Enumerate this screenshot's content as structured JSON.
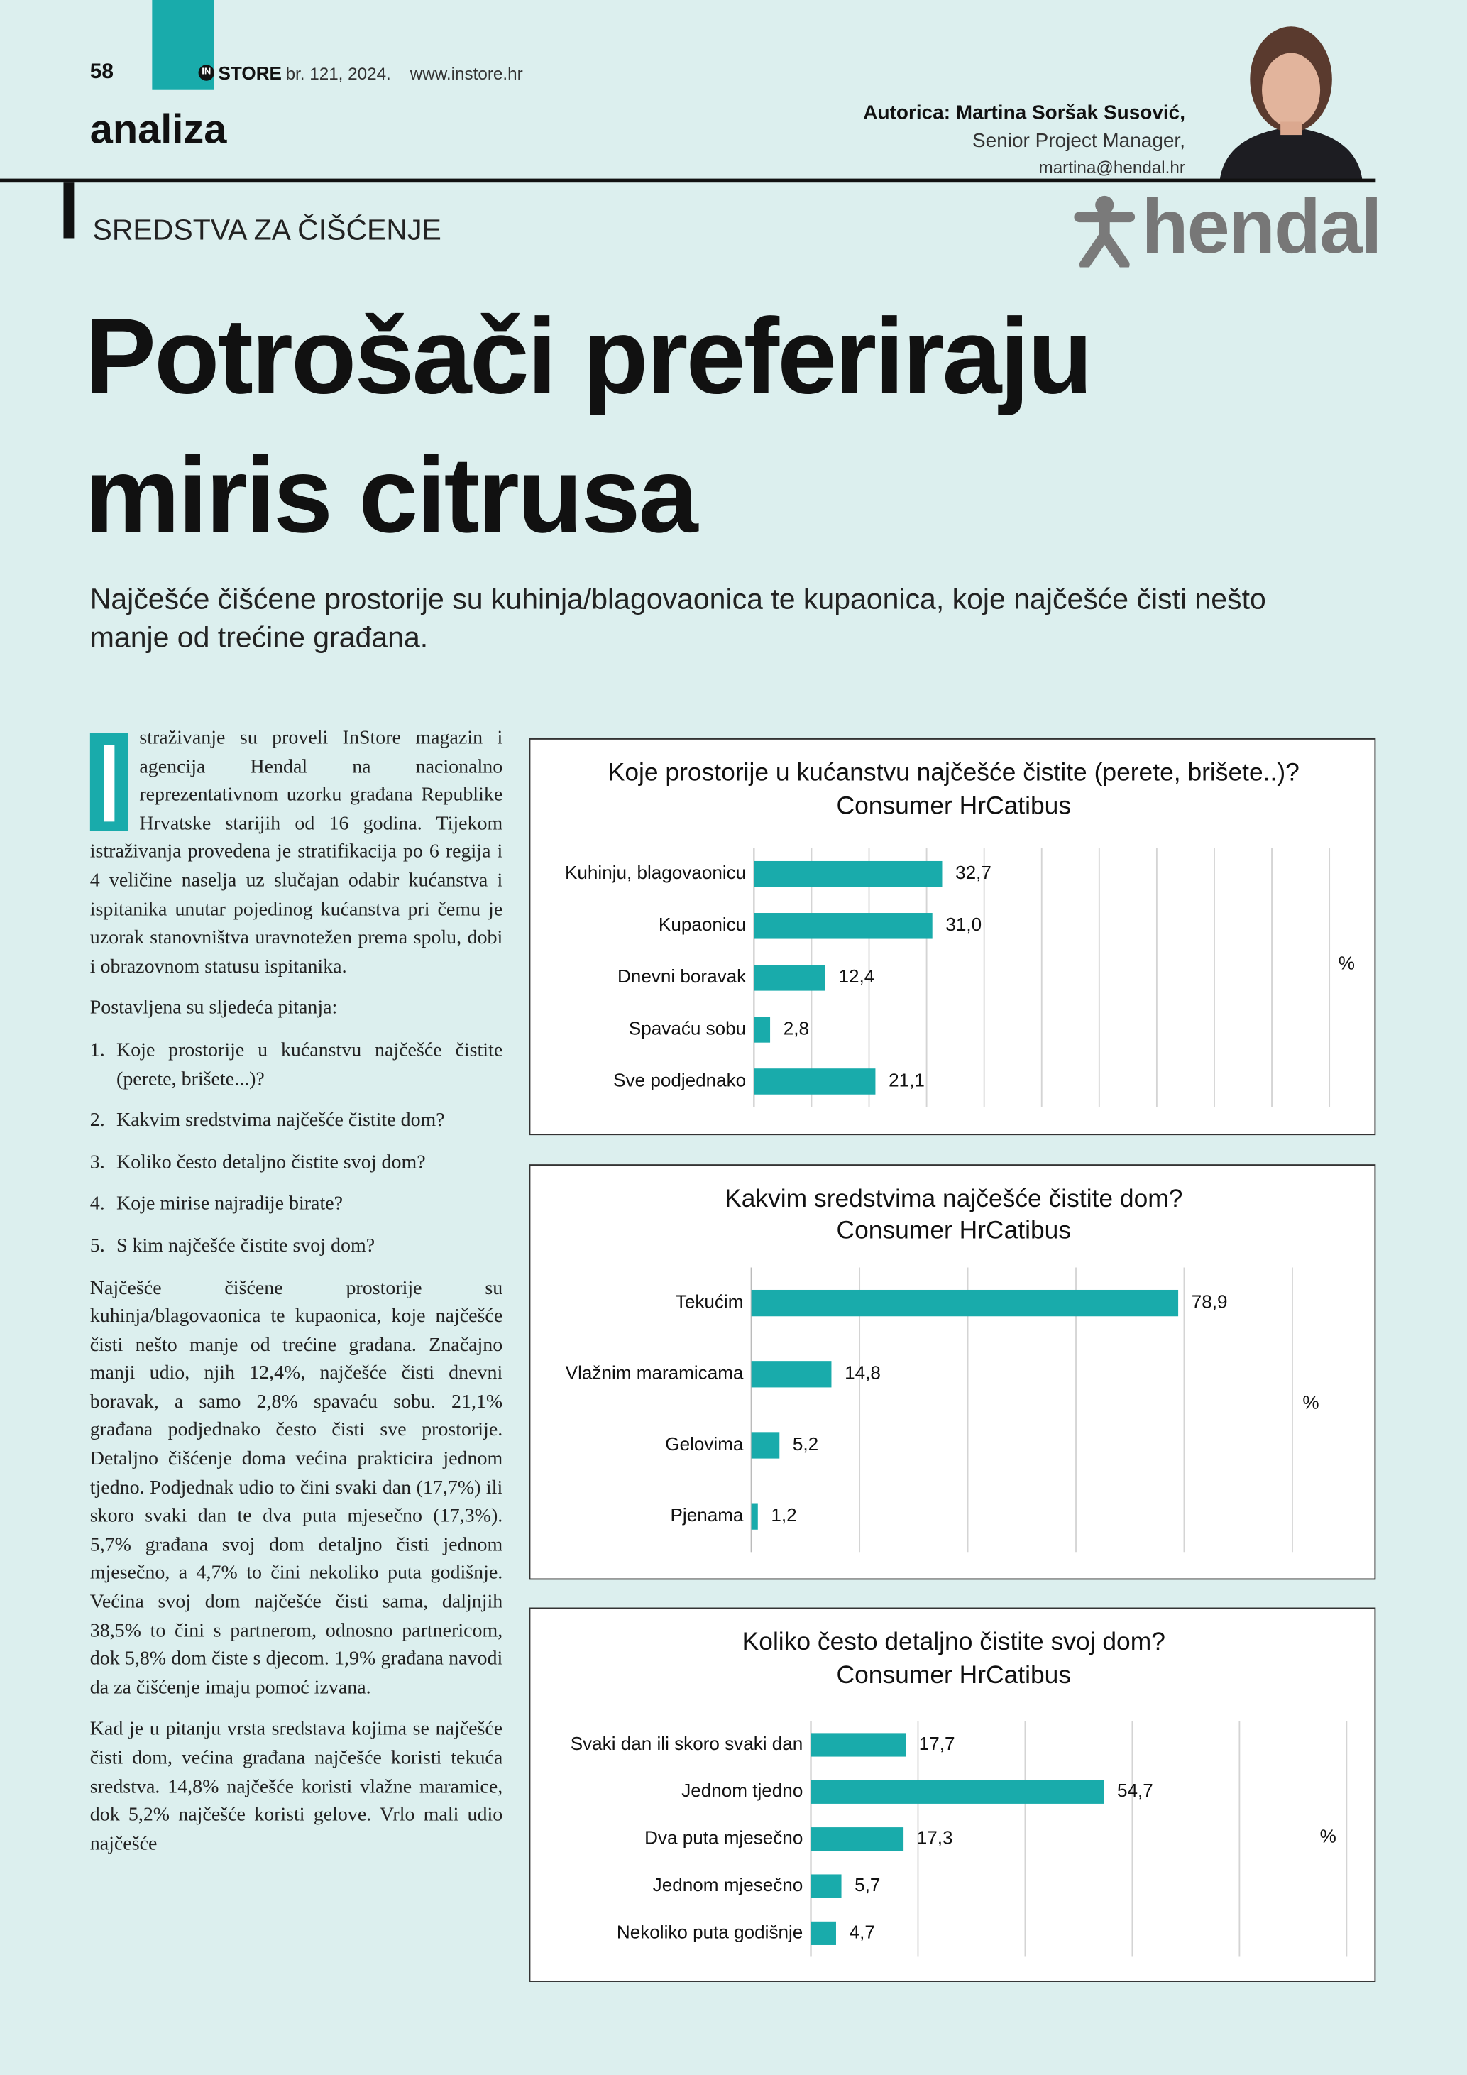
{
  "header": {
    "page_number": "58",
    "logo_badge": "IN",
    "logo_text": "STORE",
    "issue": "br. 121, 2024.",
    "website": "www.instore.hr",
    "section": "analiza",
    "author": "Autorica: Martina Soršak Susović,",
    "author_role": "Senior Project Manager,",
    "author_email": "martina@hendal.hr",
    "brand": "hendal"
  },
  "kicker": "SREDSTVA ZA ČIŠĆENJE",
  "title_lines": [
    "Potrošači preferiraju",
    "miris citrusa"
  ],
  "lead": "Najčešće čišćene prostorije su kuhinja/blagovaonica te kupaonica, koje najčešće čisti nešto manje od trećine građana.",
  "article": {
    "intro": "Istraživanje su proveli InStore magazin i agencija Hendal na nacionalno reprezentativnom uzorku građana Republike Hrvatske starijih od 16 godina. Tijekom istraživanja provedena je stratifikacija po 6 regija i 4 veličine naselja uz slučajan odabir kućanstva i ispitanika unutar pojedinog kućanstva pri čemu je uzorak stanovništva uravnotežen prema spolu, dobi i obrazovnom statusu ispitanika.",
    "questions_intro": "Postavljena su sljedeća pitanja:",
    "questions": [
      {
        "number": "1.",
        "text": "Koje prostorije u kućanstvu najčešće čistite (perete, brišete...)?"
      },
      {
        "number": "2.",
        "text": "Kakvim sredstvima najčešće čistite dom?"
      },
      {
        "number": "3.",
        "text": "Koliko često detaljno čistite svoj dom?"
      },
      {
        "number": "4.",
        "text": "Koje mirise najradije birate?"
      },
      {
        "number": "5.",
        "text": "S kim najčešće čistite svoj dom?"
      }
    ],
    "paragraphs": [
      "Najčešće čišćene prostorije su kuhinja/blagovaonica te kupaonica, koje najčešće čisti nešto manje od trećine građana. Značajno manji udio, njih 12,4%, najčešće čisti dnevni boravak, a samo 2,8% spavaću sobu. 21,1% građana podjednako često čisti sve prostorije. Detaljno čišćenje doma većina prakticira jednom tjedno. Podjednak udio to čini svaki dan (17,7%) ili skoro svaki dan te dva puta mjesečno (17,3%). 5,7% građana svoj dom detaljno čisti jednom mjesečno, a 4,7% to čini nekoliko puta godišnje. Većina svoj dom najčešće čisti sama, daljnjih 38,5% to čini s partnerom, odnosno partnericom, dok 5,8% dom čiste s djecom. 1,9% građana navodi da za čišćenje imaju pomoć izvana.",
      "Kad je u pitanju vrsta sredstava kojima se najčešće čisti dom, većina građana najčešće koristi tekuća sredstva. 14,8% najčešće koristi vlažne maramice, dok 5,2% najčešće koristi gelove. Vrlo mali udio najčešće"
    ]
  },
  "chart_data": [
    {
      "type": "bar",
      "orientation": "horizontal",
      "title": "Koje prostorije u kućanstvu najčešće čistite (perete, brišete..)?",
      "subtitle": "Consumer HrCatibus",
      "categories": [
        "Kuhinju, blagovaonicu",
        "Kupaonicu",
        "Dnevni boravak",
        "Spavaću sobu",
        "Sve podjednako"
      ],
      "values": [
        32.7,
        31.0,
        12.4,
        2.8,
        21.1
      ],
      "value_labels": [
        "32,7",
        "31,0",
        "12,4",
        "2,8",
        "21,1"
      ],
      "color": "#19abab",
      "xlim": [
        0,
        100
      ],
      "xticks": [
        0,
        10,
        20,
        30,
        40,
        50,
        60,
        70,
        80,
        90,
        100
      ],
      "grid": true,
      "axis_label": "%"
    },
    {
      "type": "bar",
      "orientation": "horizontal",
      "title": "Kakvim sredstvima najčešće čistite dom?",
      "subtitle": "Consumer HrCatibus",
      "categories": [
        "Tekućim",
        "Vlažnim maramicama",
        "Gelovima",
        "Pjenama"
      ],
      "values": [
        78.9,
        14.8,
        5.2,
        1.2
      ],
      "value_labels": [
        "78,9",
        "14,8",
        "5,2",
        "1,2"
      ],
      "color": "#19abab",
      "xlim": [
        0,
        100
      ],
      "xticks": [
        0,
        20,
        40,
        60,
        80,
        100
      ],
      "grid": true,
      "axis_label": "%"
    },
    {
      "type": "bar",
      "orientation": "horizontal",
      "title": "Koliko često detaljno čistite svoj dom?",
      "subtitle": "Consumer HrCatibus",
      "categories": [
        "Svaki dan ili skoro svaki dan",
        "Jednom tjedno",
        "Dva puta mjesečno",
        "Jednom mjesečno",
        "Nekoliko puta godišnje"
      ],
      "values": [
        17.7,
        54.7,
        17.3,
        5.7,
        4.7
      ],
      "value_labels": [
        "17,7",
        "54,7",
        "17,3",
        "5,7",
        "4,7"
      ],
      "color": "#19abab",
      "xlim": [
        0,
        100
      ],
      "xticks": [
        0,
        20,
        40,
        60,
        80,
        100
      ],
      "grid": true,
      "axis_label": "%"
    }
  ]
}
